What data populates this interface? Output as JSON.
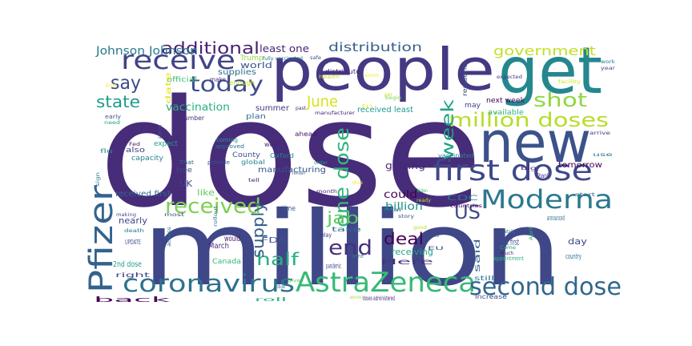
{
  "image": {
    "type": "word-cloud",
    "background": "#ffffff",
    "palette": "viridis"
  },
  "words": [
    {
      "text": "dose",
      "color": "#472c7a"
    },
    {
      "text": "million",
      "color": "#3f4788"
    },
    {
      "text": "people",
      "color": "#443983"
    },
    {
      "text": "get",
      "color": "#24878e"
    },
    {
      "text": "new",
      "color": "#3b528b"
    },
    {
      "text": "first dose",
      "color": "#3f4889"
    },
    {
      "text": "Moderna",
      "color": "#2a788e"
    },
    {
      "text": "AstraZeneca",
      "color": "#38b977"
    },
    {
      "text": "coronavirus",
      "color": "#2c728e"
    },
    {
      "text": "second dose",
      "color": "#31678e"
    },
    {
      "text": "Pfizer",
      "color": "#33638d"
    },
    {
      "text": "receive",
      "color": "#414487"
    },
    {
      "text": "today",
      "color": "#3e4c8a"
    },
    {
      "text": "million doses",
      "color": "#b5de2b"
    },
    {
      "text": "shot",
      "color": "#8fd744"
    },
    {
      "text": "received",
      "color": "#7ad151"
    },
    {
      "text": "US",
      "color": "#3e4989"
    },
    {
      "text": "week",
      "color": "#20a386"
    },
    {
      "text": "one dose",
      "color": "#31b57b"
    },
    {
      "text": "end",
      "color": "#46307e"
    },
    {
      "text": "deal",
      "color": "#440154"
    },
    {
      "text": "jab",
      "color": "#5ec962"
    },
    {
      "text": "half",
      "color": "#28ae80"
    },
    {
      "text": "supply",
      "color": "#35608d"
    },
    {
      "text": "say",
      "color": "#3e4a89"
    },
    {
      "text": "state",
      "color": "#1f9a8a"
    },
    {
      "text": "June",
      "color": "#d8e219"
    },
    {
      "text": "additional",
      "color": "#482173"
    },
    {
      "text": "government",
      "color": "#c2df23"
    },
    {
      "text": "distribution",
      "color": "#355f8d"
    },
    {
      "text": "Johnson Johnson",
      "color": "#2a788e"
    },
    {
      "text": "vaccination",
      "color": "#29af7f"
    },
    {
      "text": "world",
      "color": "#3a548c"
    },
    {
      "text": "supplies",
      "color": "#2d718e"
    },
    {
      "text": "least one",
      "color": "#482475"
    },
    {
      "text": "Trump",
      "color": "#95d840"
    },
    {
      "text": "fully vaccinated",
      "color": "#2c728e"
    },
    {
      "text": "safe",
      "color": "#3b528b"
    },
    {
      "text": "official",
      "color": "#3fbc73"
    },
    {
      "text": "make",
      "color": "#46337f"
    },
    {
      "text": "enough",
      "color": "#c8e020"
    },
    {
      "text": "health",
      "color": "#d0e11c"
    },
    {
      "text": "distribute",
      "color": "#482878"
    },
    {
      "text": "soon",
      "color": "#fde725"
    },
    {
      "text": "expected",
      "color": "#443a83"
    },
    {
      "text": "residents",
      "color": "#3e4c8a"
    },
    {
      "text": "next week",
      "color": "#440154"
    },
    {
      "text": "may",
      "color": "#414487"
    },
    {
      "text": "available",
      "color": "#32b67a"
    },
    {
      "text": "received least",
      "color": "#1e9b8a"
    },
    {
      "text": "summer",
      "color": "#453882"
    },
    {
      "text": "past",
      "color": "#46307e"
    },
    {
      "text": "manufacturer",
      "color": "#481f70"
    },
    {
      "text": "plan",
      "color": "#2e6d8e"
    },
    {
      "text": "begin",
      "color": "#7fd34e"
    },
    {
      "text": "facility",
      "color": "#d5e21a"
    },
    {
      "text": "year",
      "color": "#3c4f8a"
    },
    {
      "text": "work",
      "color": "#277f8e"
    },
    {
      "text": "number",
      "color": "#472d7b"
    },
    {
      "text": "early",
      "color": "#39568c"
    },
    {
      "text": "expect",
      "color": "#1f9e89"
    },
    {
      "text": "also",
      "color": "#433e85"
    },
    {
      "text": "capacity",
      "color": "#25838e"
    },
    {
      "text": "That",
      "color": "#31688e"
    },
    {
      "text": "free",
      "color": "#3e4a89"
    },
    {
      "text": "provide",
      "color": "#3a548c"
    },
    {
      "text": "coming",
      "color": "#1e9c89"
    },
    {
      "text": "approved",
      "color": "#2c738e"
    },
    {
      "text": "Oxford",
      "color": "#24868e"
    },
    {
      "text": "well",
      "color": "#482576"
    },
    {
      "text": "ahead",
      "color": "#481769"
    },
    {
      "text": "vaccinated",
      "color": "#26828e"
    },
    {
      "text": "County",
      "color": "#3b518b"
    },
    {
      "text": "global",
      "color": "#24878e"
    },
    {
      "text": "manufacturing",
      "color": "#3a538b"
    },
    {
      "text": "getting",
      "color": "#482878"
    },
    {
      "text": "tomorrow",
      "color": "#440154"
    },
    {
      "text": "UK",
      "color": "#3f4788"
    },
    {
      "text": "like",
      "color": "#63cb5f"
    },
    {
      "text": "received first",
      "color": "#31688e"
    },
    {
      "text": "could",
      "color": "#440256"
    },
    {
      "text": "billion",
      "color": "#21908d"
    },
    {
      "text": "nearly",
      "color": "#404588"
    },
    {
      "text": "time",
      "color": "#375a8c"
    },
    {
      "text": "month",
      "color": "#482475"
    },
    {
      "text": "Biden",
      "color": "#3dbc74"
    },
    {
      "text": "CDC",
      "color": "#2a788e"
    },
    {
      "text": "countries",
      "color": "#450457"
    },
    {
      "text": "announced",
      "color": "#2f6b8e"
    },
    {
      "text": "start",
      "color": "#2e6f8e"
    },
    {
      "text": "Thank",
      "color": "#46337f"
    },
    {
      "text": "big",
      "color": "#482576"
    },
    {
      "text": "would",
      "color": "#481a6c"
    },
    {
      "text": "FDA",
      "color": "#3b528b"
    },
    {
      "text": "March",
      "color": "#472c7a"
    },
    {
      "text": "delay",
      "color": "#433d84"
    },
    {
      "text": "take",
      "color": "#30698e"
    },
    {
      "text": "receiving",
      "color": "#20a486"
    },
    {
      "text": "got first",
      "color": "#3b528b"
    },
    {
      "text": "day",
      "color": "#3f4889"
    },
    {
      "text": "said",
      "color": "#355e8d"
    },
    {
      "text": "Canada",
      "color": "#35b779"
    },
    {
      "text": "2nd dose",
      "color": "#1fa088"
    },
    {
      "text": "UPDATE",
      "color": "#39558c"
    },
    {
      "text": "right",
      "color": "#404688"
    },
    {
      "text": "pandemic",
      "color": "#3c508b"
    },
    {
      "text": "done",
      "color": "#287c8e"
    },
    {
      "text": "Here",
      "color": "#46327e"
    },
    {
      "text": "appointment",
      "color": "#31b57b"
    },
    {
      "text": "country",
      "color": "#2d708e"
    },
    {
      "text": "still",
      "color": "#2c728e"
    },
    {
      "text": "back",
      "color": "#450559"
    },
    {
      "text": "doses administered",
      "color": "#472a7a"
    },
    {
      "text": "increase",
      "color": "#3e4c8a"
    },
    {
      "text": "distributed",
      "color": "#2e6e8e"
    },
    {
      "text": "give",
      "color": "#6ccd5a"
    },
    {
      "text": "roll",
      "color": "#29af7f"
    },
    {
      "text": "announce",
      "color": "#a2da37"
    },
    {
      "text": "date",
      "color": "#e5e419"
    },
    {
      "text": "American",
      "color": "#3b528b"
    },
    {
      "text": "Fed",
      "color": "#471063"
    },
    {
      "text": "flu",
      "color": "#21918c"
    },
    {
      "text": "use",
      "color": "#2a788e"
    },
    {
      "text": "arrive",
      "color": "#453781"
    },
    {
      "text": "details",
      "color": "#2d708e"
    },
    {
      "text": "tmo",
      "color": "#3f4788"
    },
    {
      "text": "EU",
      "color": "#3a548c"
    },
    {
      "text": "good",
      "color": "#b8de29"
    },
    {
      "text": "trial",
      "color": "#2c728e"
    },
    {
      "text": "story",
      "color": "#3b528b"
    },
    {
      "text": "ready",
      "color": "#c0df25"
    },
    {
      "text": "April",
      "color": "#3dbc74"
    },
    {
      "text": "Come",
      "color": "#20a386"
    },
    {
      "text": "much",
      "color": "#481b6d"
    },
    {
      "text": "most",
      "color": "#3e4989"
    },
    {
      "text": "rollout",
      "color": "#2e6e8e"
    },
    {
      "text": "across",
      "color": "#2d708e"
    },
    {
      "text": "death",
      "color": "#2a768e"
    },
    {
      "text": "making",
      "color": "#3d4e8a"
    },
    {
      "text": "remain",
      "color": "#31688e"
    },
    {
      "text": "sign",
      "color": "#2a788e"
    },
    {
      "text": "need",
      "color": "#20a386"
    },
    {
      "text": "order",
      "color": "#1f9a8a"
    },
    {
      "text": "tell",
      "color": "#481b6d"
    },
    {
      "text": "per",
      "color": "#c2df23"
    },
    {
      "text": "tri",
      "color": "#fde725"
    },
    {
      "text": "due",
      "color": "#fde725"
    },
    {
      "text": "put",
      "color": "#fde725"
    },
    {
      "text": "set",
      "color": "#b5de2b"
    }
  ]
}
